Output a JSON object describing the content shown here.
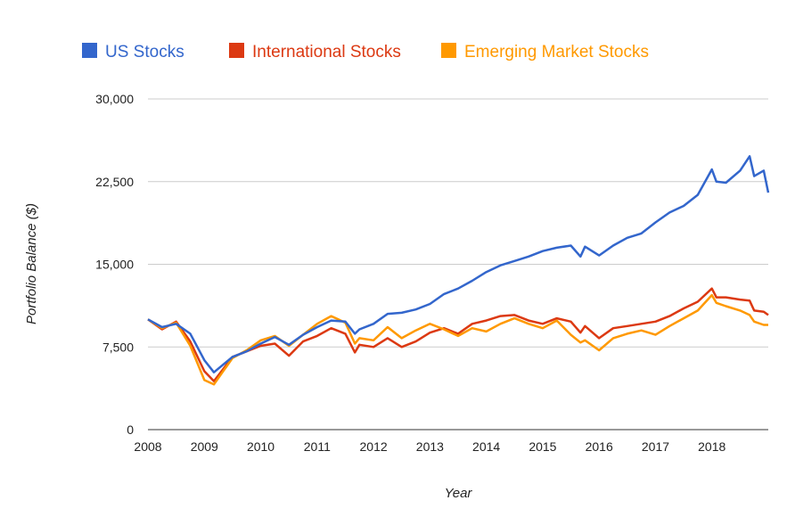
{
  "chart_data": {
    "type": "line",
    "title": "",
    "xlabel": "Year",
    "ylabel": "Portfolio Balance ($)",
    "xlim": [
      2008,
      2019
    ],
    "ylim": [
      0,
      30000
    ],
    "grid": true,
    "legend_position": "top",
    "x_ticks": [
      "2008",
      "2009",
      "2010",
      "2011",
      "2012",
      "2013",
      "2014",
      "2015",
      "2016",
      "2017",
      "2018"
    ],
    "y_ticks": [
      "0",
      "7,500",
      "15,000",
      "22,500",
      "30,000"
    ],
    "y_tick_values": [
      0,
      7500,
      15000,
      22500,
      30000
    ],
    "x": [
      2008.0,
      2008.25,
      2008.5,
      2008.75,
      2009.0,
      2009.17,
      2009.5,
      2009.75,
      2010.0,
      2010.25,
      2010.5,
      2010.75,
      2011.0,
      2011.25,
      2011.5,
      2011.67,
      2011.75,
      2012.0,
      2012.25,
      2012.5,
      2012.75,
      2013.0,
      2013.25,
      2013.5,
      2013.75,
      2014.0,
      2014.25,
      2014.5,
      2014.75,
      2015.0,
      2015.25,
      2015.5,
      2015.67,
      2015.75,
      2016.0,
      2016.25,
      2016.5,
      2016.75,
      2017.0,
      2017.25,
      2017.5,
      2017.75,
      2018.0,
      2018.08,
      2018.25,
      2018.5,
      2018.67,
      2018.75,
      2018.92,
      2019.0
    ],
    "series": [
      {
        "name": "US Stocks",
        "color": "#3366cc",
        "values": [
          10000,
          9300,
          9600,
          8700,
          6300,
          5200,
          6600,
          7100,
          7800,
          8400,
          7700,
          8600,
          9300,
          9900,
          9800,
          8700,
          9100,
          9600,
          10500,
          10600,
          10900,
          11400,
          12300,
          12800,
          13500,
          14300,
          14900,
          15300,
          15700,
          16200,
          16500,
          16700,
          15700,
          16600,
          15800,
          16700,
          17400,
          17800,
          18800,
          19700,
          20300,
          21300,
          23600,
          22500,
          22400,
          23500,
          24800,
          23000,
          23500,
          21500
        ]
      },
      {
        "name": "International Stocks",
        "color": "#dc3912",
        "values": [
          10000,
          9100,
          9800,
          8000,
          5300,
          4400,
          6600,
          7100,
          7600,
          7800,
          6700,
          8000,
          8500,
          9200,
          8700,
          7000,
          7700,
          7500,
          8300,
          7500,
          8000,
          8800,
          9200,
          8700,
          9600,
          9900,
          10300,
          10400,
          9900,
          9600,
          10100,
          9800,
          8800,
          9400,
          8300,
          9200,
          9400,
          9600,
          9800,
          10300,
          11000,
          11600,
          12800,
          12000,
          12000,
          11800,
          11700,
          10800,
          10700,
          10400
        ]
      },
      {
        "name": "Emerging Market Stocks",
        "color": "#ff9900",
        "values": [
          10000,
          9200,
          9700,
          7600,
          4500,
          4100,
          6500,
          7200,
          8100,
          8500,
          7600,
          8600,
          9600,
          10300,
          9700,
          7800,
          8300,
          8100,
          9300,
          8300,
          9000,
          9600,
          9100,
          8500,
          9200,
          8900,
          9600,
          10100,
          9600,
          9200,
          9900,
          8600,
          7900,
          8100,
          7200,
          8300,
          8700,
          9000,
          8600,
          9400,
          10100,
          10800,
          12200,
          11500,
          11200,
          10800,
          10400,
          9800,
          9500,
          9500
        ]
      }
    ]
  }
}
